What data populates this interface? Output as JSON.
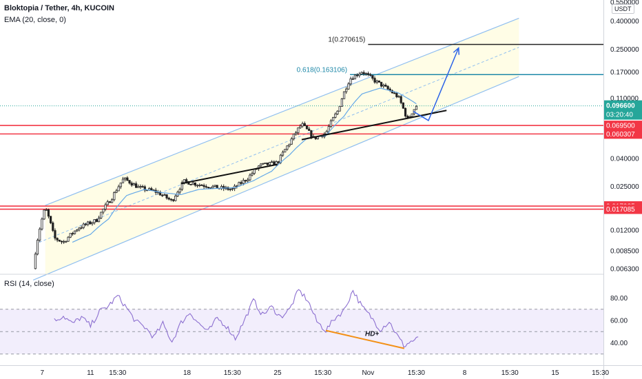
{
  "header": {
    "title": "Bloktopia / Tether, 4h, KUCOIN",
    "ema_label": "EMA (20, close, 0)",
    "rsi_label": "RSI (14, close)",
    "currency": "USDT"
  },
  "colors": {
    "up": "#26a69a",
    "down": "#ef5350",
    "candle": "#222222",
    "channel": "#90bff0",
    "channel_fill": "#fffde6",
    "ema": "#64a8e8",
    "support": "#f23645",
    "fib": "#1e88a8",
    "trend": "#111111",
    "arrow": "#2a62e8",
    "rsi": "#8c6fd0",
    "rsi_band": "#f2eefc",
    "divergence": "#f39016",
    "price_tag": "#26a69a"
  },
  "chart_data": [
    {
      "type": "candlestick",
      "title": "Bloktopia / Tether, 4h, KUCOIN",
      "y_scale": "log",
      "ylim": [
        0.0058,
        0.57
      ],
      "yticks": [
        "0.550000",
        "0.400000",
        "0.250000",
        "0.170000",
        "0.110000",
        "0.040000",
        "0.025000",
        "0.012000",
        "0.008500",
        "0.006300"
      ],
      "xlim": [
        0,
        100
      ],
      "xticks": [
        {
          "label": "7",
          "x": 7
        },
        {
          "label": "11",
          "x": 15
        },
        {
          "label": "15:30",
          "x": 19.5
        },
        {
          "label": "18",
          "x": 31
        },
        {
          "label": "15:30",
          "x": 38.5
        },
        {
          "label": "25",
          "x": 46
        },
        {
          "label": "15:30",
          "x": 53.5
        },
        {
          "label": "Nov",
          "x": 61
        },
        {
          "label": "15:30",
          "x": 69
        },
        {
          "label": "8",
          "x": 77
        },
        {
          "label": "15:30",
          "x": 84.5
        },
        {
          "label": "15",
          "x": 92
        },
        {
          "label": "15:30",
          "x": 99.5
        }
      ],
      "close_anchors": [
        {
          "x": 5.5,
          "price": 0.0063
        },
        {
          "x": 7.5,
          "price": 0.0175
        },
        {
          "x": 9,
          "price": 0.0105
        },
        {
          "x": 10.5,
          "price": 0.0098
        },
        {
          "x": 13,
          "price": 0.0125
        },
        {
          "x": 16,
          "price": 0.0142
        },
        {
          "x": 18.5,
          "price": 0.0205
        },
        {
          "x": 20.5,
          "price": 0.0285
        },
        {
          "x": 23,
          "price": 0.0245
        },
        {
          "x": 26,
          "price": 0.0228
        },
        {
          "x": 28.5,
          "price": 0.0195
        },
        {
          "x": 30.5,
          "price": 0.0272
        },
        {
          "x": 33,
          "price": 0.0258
        },
        {
          "x": 36,
          "price": 0.0245
        },
        {
          "x": 38.5,
          "price": 0.0238
        },
        {
          "x": 41,
          "price": 0.0285
        },
        {
          "x": 43,
          "price": 0.0355
        },
        {
          "x": 46,
          "price": 0.0372
        },
        {
          "x": 48,
          "price": 0.052
        },
        {
          "x": 50,
          "price": 0.071
        },
        {
          "x": 52,
          "price": 0.056
        },
        {
          "x": 54,
          "price": 0.061
        },
        {
          "x": 56,
          "price": 0.089
        },
        {
          "x": 58,
          "price": 0.152
        },
        {
          "x": 60,
          "price": 0.172
        },
        {
          "x": 62,
          "price": 0.148
        },
        {
          "x": 64,
          "price": 0.13
        },
        {
          "x": 66,
          "price": 0.112
        },
        {
          "x": 67.5,
          "price": 0.076
        },
        {
          "x": 69,
          "price": 0.0966
        }
      ],
      "ema_anchors": [
        {
          "x": 12,
          "price": 0.0098
        },
        {
          "x": 15,
          "price": 0.0112
        },
        {
          "x": 18,
          "price": 0.0145
        },
        {
          "x": 21,
          "price": 0.0215
        },
        {
          "x": 24,
          "price": 0.0238
        },
        {
          "x": 27,
          "price": 0.0225
        },
        {
          "x": 30,
          "price": 0.0218
        },
        {
          "x": 33,
          "price": 0.0238
        },
        {
          "x": 36,
          "price": 0.0242
        },
        {
          "x": 39,
          "price": 0.0245
        },
        {
          "x": 42,
          "price": 0.0275
        },
        {
          "x": 45,
          "price": 0.0322
        },
        {
          "x": 48,
          "price": 0.0425
        },
        {
          "x": 51,
          "price": 0.0565
        },
        {
          "x": 54,
          "price": 0.0585
        },
        {
          "x": 57,
          "price": 0.081
        },
        {
          "x": 60,
          "price": 0.118
        },
        {
          "x": 63,
          "price": 0.13
        },
        {
          "x": 66,
          "price": 0.12
        },
        {
          "x": 69,
          "price": 0.1
        }
      ],
      "channel": {
        "upper": [
          {
            "x": 7.5,
            "price": 0.0182
          },
          {
            "x": 86,
            "price": 0.42
          }
        ],
        "lower": [
          {
            "x": 5.5,
            "price": 0.0052
          },
          {
            "x": 86,
            "price": 0.158
          }
        ],
        "mid_dashed": [
          {
            "x": 6.5,
            "price": 0.0098
          },
          {
            "x": 86,
            "price": 0.258
          }
        ]
      },
      "trendlines": [
        {
          "name": "support-trendline-1",
          "from": {
            "x": 30,
            "price": 0.0262
          },
          "to": {
            "x": 46,
            "price": 0.0362
          }
        },
        {
          "name": "support-trendline-2",
          "from": {
            "x": 50,
            "price": 0.0548
          },
          "to": {
            "x": 74,
            "price": 0.0895
          }
        }
      ],
      "projection_arrow": {
        "from": {
          "x": 68.5,
          "price": 0.088
        },
        "via": {
          "x": 71,
          "price": 0.0755
        },
        "to": {
          "x": 76,
          "price": 0.255
        }
      },
      "horizontal_levels": [
        {
          "price": 0.0695,
          "label": "0.069500",
          "kind": "support"
        },
        {
          "price": 0.060307,
          "label": "0.060307",
          "kind": "support"
        },
        {
          "price": 0.017985,
          "label": "0.017985",
          "kind": "support"
        },
        {
          "price": 0.017085,
          "label": "0.017085",
          "kind": "support"
        }
      ],
      "fib_levels": [
        {
          "price": 0.270615,
          "label": "1(0.270615)",
          "from_x": 61,
          "color": "#222222"
        },
        {
          "price": 0.163106,
          "label": "0.618(0.163106)",
          "from_x": 58,
          "color": "#1e88a8"
        }
      ],
      "last_price": {
        "price": 0.0966,
        "label": "0.096600",
        "countdown": "03:20:40"
      }
    },
    {
      "type": "line",
      "title": "RSI (14, close)",
      "ylim": [
        20,
        100
      ],
      "yticks": [
        "80.00",
        "60.00",
        "40.00"
      ],
      "band": [
        30,
        70
      ],
      "midline": 50,
      "rsi_anchors": [
        {
          "x": 9,
          "v": 60
        },
        {
          "x": 10.5,
          "v": 64
        },
        {
          "x": 12,
          "v": 57
        },
        {
          "x": 13.5,
          "v": 63
        },
        {
          "x": 15,
          "v": 55
        },
        {
          "x": 16.5,
          "v": 68
        },
        {
          "x": 18,
          "v": 73
        },
        {
          "x": 19.5,
          "v": 82
        },
        {
          "x": 21,
          "v": 71
        },
        {
          "x": 22.5,
          "v": 59
        },
        {
          "x": 24,
          "v": 54
        },
        {
          "x": 25.5,
          "v": 45
        },
        {
          "x": 27,
          "v": 57
        },
        {
          "x": 28.5,
          "v": 41
        },
        {
          "x": 30,
          "v": 58
        },
        {
          "x": 31.5,
          "v": 67
        },
        {
          "x": 33,
          "v": 57
        },
        {
          "x": 34.5,
          "v": 50
        },
        {
          "x": 36,
          "v": 62
        },
        {
          "x": 37.5,
          "v": 55
        },
        {
          "x": 39,
          "v": 44
        },
        {
          "x": 40.5,
          "v": 60
        },
        {
          "x": 42,
          "v": 78
        },
        {
          "x": 43.5,
          "v": 65
        },
        {
          "x": 45,
          "v": 72
        },
        {
          "x": 46.5,
          "v": 63
        },
        {
          "x": 48,
          "v": 70
        },
        {
          "x": 49.5,
          "v": 87
        },
        {
          "x": 51,
          "v": 78
        },
        {
          "x": 52.5,
          "v": 59
        },
        {
          "x": 54,
          "v": 51
        },
        {
          "x": 55.5,
          "v": 62
        },
        {
          "x": 57,
          "v": 69
        },
        {
          "x": 58.5,
          "v": 87
        },
        {
          "x": 60,
          "v": 72
        },
        {
          "x": 61.5,
          "v": 63
        },
        {
          "x": 63,
          "v": 52
        },
        {
          "x": 64.5,
          "v": 59
        },
        {
          "x": 66,
          "v": 45
        },
        {
          "x": 67,
          "v": 37
        },
        {
          "x": 68,
          "v": 41
        },
        {
          "x": 69.5,
          "v": 44
        }
      ],
      "divergence": {
        "from": {
          "x": 54,
          "v": 51
        },
        "to": {
          "x": 67,
          "v": 35
        },
        "label": "HD+"
      }
    }
  ]
}
